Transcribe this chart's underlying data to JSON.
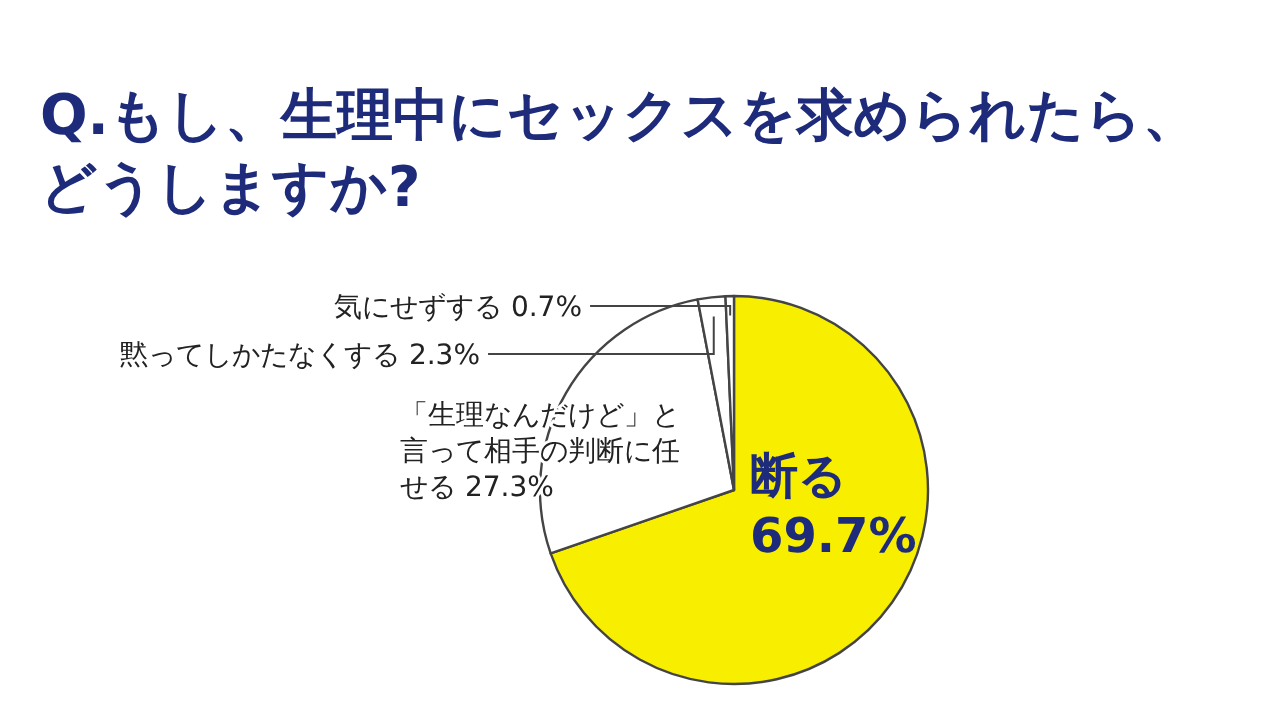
{
  "chart_data": {
    "type": "pie",
    "title": "Q.もし、生理中にセックスを求められたら、どうしますか?",
    "categories": [
      "断る",
      "「生理なんだけど」と言って相手の判断に任せる",
      "黙ってしかたなくする",
      "気にせずする"
    ],
    "values": [
      69.7,
      27.3,
      2.3,
      0.7
    ],
    "value_labels": [
      "69.7%",
      "27.3%",
      "2.3%",
      "0.7%"
    ],
    "colors": [
      "#f8ee00",
      "#ffffff",
      "#ffffff",
      "#ffffff"
    ]
  }
}
